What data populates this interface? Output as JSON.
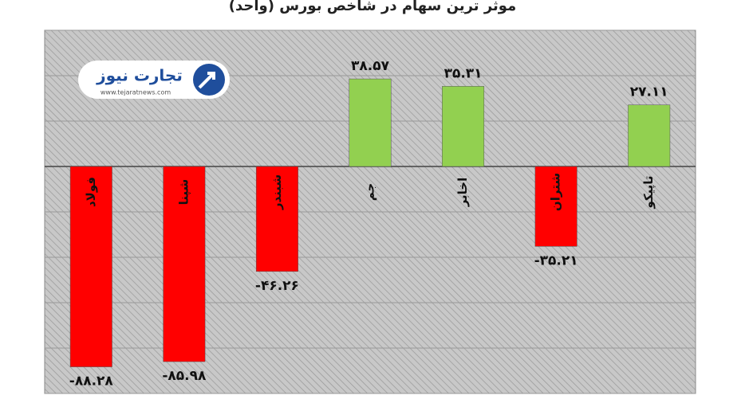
{
  "chart_data": {
    "type": "bar",
    "title": "موثر ترین سهام در شاخص بورس (واحد)",
    "logo_name": "تجارت نیوز",
    "logo_url": "www.tejaratnews.com",
    "categories": [
      "فولاد",
      "شپنا",
      "شبندر",
      "جم",
      "اخابر",
      "شتران",
      "تاپیکو"
    ],
    "values": [
      -88.28,
      -85.98,
      -46.26,
      38.57,
      35.31,
      -35.21,
      27.11
    ],
    "value_labels": [
      "-۸۸.۲۸",
      "-۸۵.۹۸",
      "-۴۶.۲۶",
      "۳۸.۵۷",
      "۳۵.۳۱",
      "-۳۵.۲۱",
      "۲۷.۱۱"
    ],
    "positive_color": "#92d050",
    "negative_color": "#ff0000",
    "ylim": [
      -100,
      60
    ],
    "yticks": [
      -100,
      -80,
      -60,
      -40,
      -20,
      0,
      20,
      40,
      60
    ],
    "grid": true
  }
}
